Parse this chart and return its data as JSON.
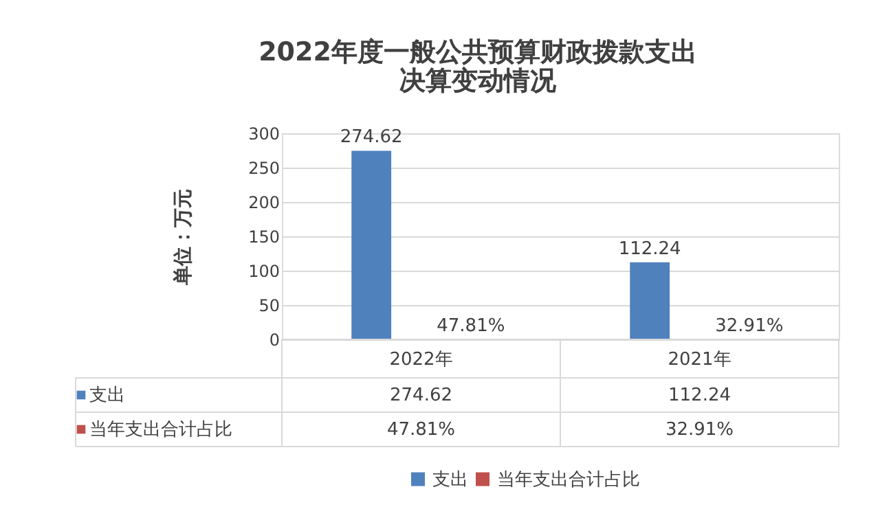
{
  "chart_data": {
    "type": "bar",
    "title": "2022年度一般公共预算财政拨款支出决算变动情况",
    "ylabel": "单位：万元",
    "categories": [
      "2022年",
      "2021年"
    ],
    "series": [
      {
        "name": "支出",
        "color": "#4f81bd",
        "values": [
          274.62,
          112.24
        ],
        "value_labels": [
          "274.62",
          "112.24"
        ]
      },
      {
        "name": "当年支出合计占比",
        "color": "#c0504d",
        "values": [
          0.4781,
          0.3291
        ],
        "value_labels": [
          "47.81%",
          "32.91%"
        ]
      }
    ],
    "ylim": [
      0,
      300
    ],
    "yticks": [
      0,
      50,
      100,
      150,
      200,
      250,
      300
    ],
    "grid": "y",
    "legend": "bottom"
  }
}
